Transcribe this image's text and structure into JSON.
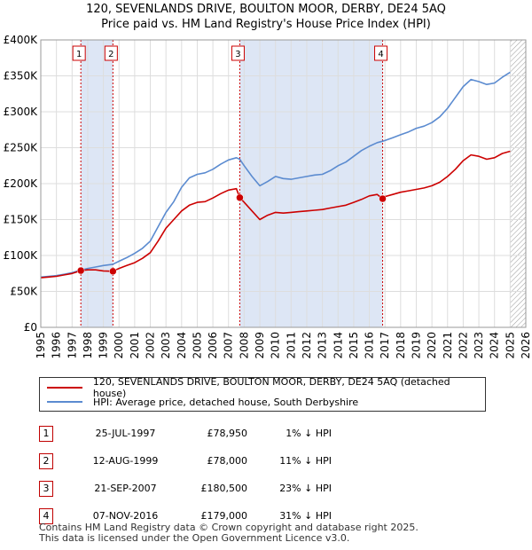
{
  "header": {
    "title_line1": "120, SEVENLANDS DRIVE, BOULTON MOOR, DERBY, DE24 5AQ",
    "title_line2": "Price paid vs. HM Land Registry's House Price Index (HPI)"
  },
  "colors": {
    "price_paid": "#cc0000",
    "hpi": "#5b8bd0",
    "shade": "#dde6f5",
    "grid": "#dddddd",
    "marker_border": "#cc0000"
  },
  "chart_data": {
    "type": "line",
    "xlim": [
      1995,
      2026
    ],
    "ylim": [
      0,
      400000
    ],
    "yticks": [
      0,
      50000,
      100000,
      150000,
      200000,
      250000,
      300000,
      350000,
      400000
    ],
    "ytick_labels": [
      "£0",
      "£50K",
      "£100K",
      "£150K",
      "£200K",
      "£250K",
      "£300K",
      "£350K",
      "£400K"
    ],
    "xticks": [
      1995,
      1996,
      1997,
      1998,
      1999,
      2000,
      2001,
      2002,
      2003,
      2004,
      2005,
      2006,
      2007,
      2008,
      2009,
      2010,
      2011,
      2012,
      2013,
      2014,
      2015,
      2016,
      2017,
      2018,
      2019,
      2020,
      2021,
      2022,
      2023,
      2024,
      2025,
      2026
    ],
    "xtick_labels": [
      "1995",
      "1996",
      "1997",
      "1998",
      "1999",
      "2000",
      "2001",
      "2002",
      "2003",
      "2004",
      "2005",
      "2006",
      "2007",
      "2008",
      "2009",
      "2010",
      "2011",
      "2012",
      "2013",
      "2014",
      "2015",
      "2016",
      "2017",
      "2018",
      "2019",
      "2020",
      "2021",
      "2022",
      "2023",
      "2024",
      "2025",
      "2026"
    ],
    "shaded_ranges": [
      [
        1997.56,
        1999.61
      ],
      [
        2007.72,
        2016.85
      ]
    ],
    "hatch_from": 2025.0,
    "series": [
      {
        "name": "HPI",
        "x": [
          1995.0,
          1995.5,
          1996.0,
          1996.5,
          1997.0,
          1997.56,
          1998.0,
          1998.5,
          1999.0,
          1999.61,
          2000.0,
          2000.5,
          2001.0,
          2001.5,
          2002.0,
          2002.5,
          2003.0,
          2003.5,
          2004.0,
          2004.5,
          2005.0,
          2005.5,
          2006.0,
          2006.5,
          2007.0,
          2007.5,
          2007.72,
          2008.0,
          2008.5,
          2009.0,
          2009.5,
          2010.0,
          2010.5,
          2011.0,
          2011.5,
          2012.0,
          2012.5,
          2013.0,
          2013.5,
          2014.0,
          2014.5,
          2015.0,
          2015.5,
          2016.0,
          2016.5,
          2016.85,
          2017.0,
          2017.5,
          2018.0,
          2018.5,
          2019.0,
          2019.5,
          2020.0,
          2020.5,
          2021.0,
          2021.5,
          2022.0,
          2022.5,
          2023.0,
          2023.5,
          2024.0,
          2024.5,
          2025.0
        ],
        "y": [
          70000,
          71000,
          72000,
          74000,
          76000,
          79700,
          82000,
          84000,
          86000,
          87800,
          92000,
          97000,
          103000,
          110000,
          120000,
          140000,
          160000,
          175000,
          195000,
          208000,
          213000,
          215000,
          220000,
          227000,
          233000,
          236000,
          234000,
          225000,
          210000,
          197000,
          203000,
          210000,
          207000,
          206000,
          208000,
          210000,
          212000,
          213000,
          218000,
          225000,
          230000,
          238000,
          246000,
          252000,
          257000,
          259000,
          260000,
          264000,
          268000,
          272000,
          277000,
          280000,
          285000,
          293000,
          305000,
          320000,
          335000,
          345000,
          342000,
          338000,
          340000,
          348000,
          355000
        ]
      },
      {
        "name": "Price paid",
        "x": [
          1995.0,
          1995.5,
          1996.0,
          1996.5,
          1997.0,
          1997.56,
          1998.0,
          1998.5,
          1999.0,
          1999.61,
          2000.0,
          2000.5,
          2001.0,
          2001.5,
          2002.0,
          2002.5,
          2003.0,
          2003.5,
          2004.0,
          2004.5,
          2005.0,
          2005.5,
          2006.0,
          2006.5,
          2007.0,
          2007.5,
          2007.72,
          2008.0,
          2008.5,
          2009.0,
          2009.5,
          2010.0,
          2010.5,
          2011.0,
          2011.5,
          2012.0,
          2012.5,
          2013.0,
          2013.5,
          2014.0,
          2014.5,
          2015.0,
          2015.5,
          2016.0,
          2016.5,
          2016.85,
          2017.0,
          2017.5,
          2018.0,
          2018.5,
          2019.0,
          2019.5,
          2020.0,
          2020.5,
          2021.0,
          2021.5,
          2022.0,
          2022.5,
          2023.0,
          2023.5,
          2024.0,
          2024.5,
          2025.0
        ],
        "y": [
          69000,
          70000,
          71000,
          73000,
          75000,
          78950,
          80000,
          80000,
          78500,
          78000,
          82000,
          86000,
          90000,
          96000,
          104000,
          120000,
          138000,
          150000,
          162000,
          170000,
          174000,
          175000,
          180000,
          186000,
          191000,
          193000,
          180500,
          174000,
          162000,
          150000,
          156000,
          160000,
          159000,
          160000,
          161000,
          162000,
          163000,
          164000,
          166000,
          168000,
          170000,
          174000,
          178000,
          183000,
          185000,
          179000,
          182000,
          185000,
          188000,
          190000,
          192000,
          194000,
          197000,
          202000,
          210000,
          220000,
          232000,
          240000,
          238000,
          234000,
          236000,
          242000,
          245000
        ]
      }
    ],
    "sales": [
      {
        "label": "1",
        "x": 1997.56,
        "y": 78950
      },
      {
        "label": "2",
        "x": 1999.61,
        "y": 78000
      },
      {
        "label": "3",
        "x": 2007.72,
        "y": 180500
      },
      {
        "label": "4",
        "x": 2016.85,
        "y": 179000
      }
    ]
  },
  "legend": {
    "price_paid_label": "120, SEVENLANDS DRIVE, BOULTON MOOR, DERBY, DE24 5AQ (detached house)",
    "hpi_label": "HPI: Average price, detached house, South Derbyshire"
  },
  "sales_table": [
    {
      "num": "1",
      "date": "25-JUL-1997",
      "price": "£78,950",
      "hpi": "1% ↓ HPI"
    },
    {
      "num": "2",
      "date": "12-AUG-1999",
      "price": "£78,000",
      "hpi": "11% ↓ HPI"
    },
    {
      "num": "3",
      "date": "21-SEP-2007",
      "price": "£180,500",
      "hpi": "23% ↓ HPI"
    },
    {
      "num": "4",
      "date": "07-NOV-2016",
      "price": "£179,000",
      "hpi": "31% ↓ HPI"
    }
  ],
  "footer": {
    "line1": "Contains HM Land Registry data © Crown copyright and database right 2025.",
    "line2": "This data is licensed under the Open Government Licence v3.0."
  }
}
